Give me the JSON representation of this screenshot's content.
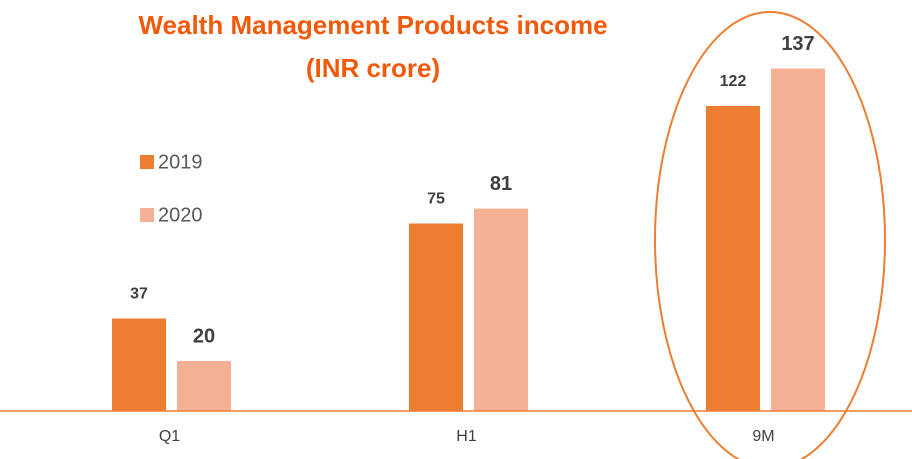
{
  "chart_data": {
    "type": "bar",
    "title": [
      "Wealth Management Products income",
      "(INR crore)"
    ],
    "categories": [
      "Q1",
      "H1",
      "9M"
    ],
    "series": [
      {
        "name": "2019",
        "color": "#ed7d31",
        "values": [
          37,
          75,
          122
        ]
      },
      {
        "name": "2020",
        "color": "#f4b196",
        "values": [
          20,
          81,
          137
        ]
      }
    ],
    "ylim": [
      0,
      160
    ]
  }
}
